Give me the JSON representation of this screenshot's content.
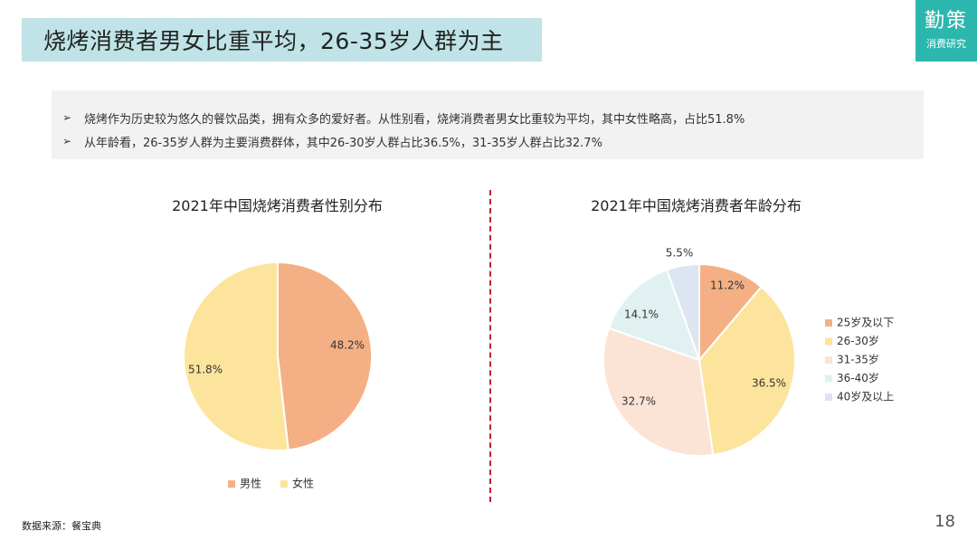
{
  "header": {
    "title": "烧烤消费者男女比重平均，26-35岁人群为主",
    "logo_main": "勤策",
    "logo_sub": "消费研究"
  },
  "summary": [
    "烧烤作为历史较为悠久的餐饮品类，拥有众多的爱好者。从性别看，烧烤消费者男女比重较为平均，其中女性略高，占比51.8%",
    "从年龄看，26-35岁人群为主要消费群体，其中26-30岁人群占比36.5%，31-35岁人群占比32.7%"
  ],
  "footer": {
    "source": "数据来源：餐宝典",
    "page": "18"
  },
  "chart_data": [
    {
      "type": "pie",
      "title": "2021年中国烧烤消费者性别分布",
      "categories": [
        "男性",
        "女性"
      ],
      "values": [
        48.2,
        51.8
      ],
      "labels": [
        "48.2%",
        "51.8%"
      ],
      "colors": [
        "#f4b084",
        "#fde49c"
      ],
      "legend_position": "bottom"
    },
    {
      "type": "pie",
      "title": "2021年中国烧烤消费者年龄分布",
      "categories": [
        "25岁及以下",
        "26-30岁",
        "31-35岁",
        "36-40岁",
        "40岁及以上"
      ],
      "values": [
        11.2,
        36.5,
        32.7,
        14.1,
        5.5
      ],
      "labels": [
        "11.2%",
        "36.5%",
        "32.7%",
        "14.1%",
        "5.5%"
      ],
      "colors": [
        "#f4b084",
        "#fde49c",
        "#fbe3d6",
        "#e1f1f1",
        "#dde5f3"
      ],
      "legend_position": "right"
    }
  ]
}
